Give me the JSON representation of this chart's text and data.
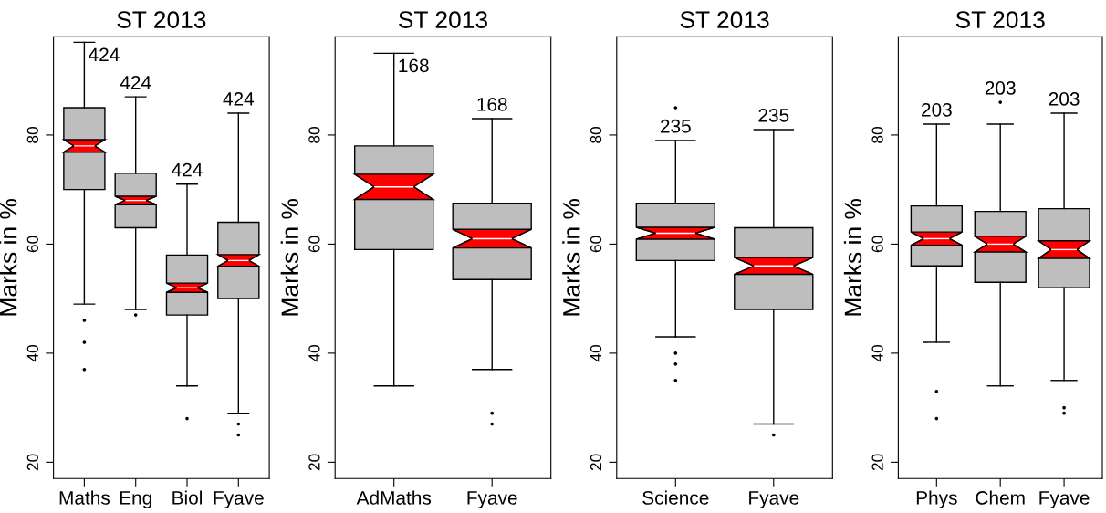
{
  "chart_data": [
    {
      "type": "box",
      "title": "ST 2013",
      "ylabel": "Marks in %",
      "categories": [
        "Maths",
        "Eng",
        "Biol",
        "Fyave"
      ],
      "ylim": [
        17,
        98
      ],
      "yticks": [
        20,
        40,
        60,
        80
      ],
      "grid": false,
      "series": [
        {
          "color": "#bebebe",
          "boxes": [
            {
              "low": 49,
              "q1": 70,
              "median": 78,
              "q3": 85,
              "high": 97,
              "outliers": [
                46,
                42,
                37
              ]
            },
            {
              "low": 48,
              "q1": 63,
              "median": 68,
              "q3": 73,
              "high": 87,
              "outliers": [
                47
              ]
            },
            {
              "low": 34,
              "q1": 47,
              "median": 52,
              "q3": 58,
              "high": 71,
              "outliers": [
                28
              ]
            },
            {
              "low": 29,
              "q1": 50,
              "median": 57,
              "q3": 64,
              "high": 84,
              "outliers": [
                27,
                25
              ]
            }
          ]
        }
      ],
      "annotations": [
        "424",
        "424",
        "424",
        "424"
      ]
    },
    {
      "type": "box",
      "title": "ST 2013",
      "ylabel": "Marks in %",
      "categories": [
        "AdMaths",
        "Fyave"
      ],
      "ylim": [
        17,
        98
      ],
      "yticks": [
        20,
        40,
        60,
        80
      ],
      "grid": false,
      "series": [
        {
          "color": "#bebebe",
          "boxes": [
            {
              "low": 34,
              "q1": 59,
              "median": 70.5,
              "q3": 78,
              "high": 95
            },
            {
              "low": 37,
              "q1": 53.5,
              "median": 61,
              "q3": 67.5,
              "high": 83,
              "outliers": [
                29,
                27
              ]
            }
          ]
        }
      ],
      "annotations": [
        "168",
        "168"
      ]
    },
    {
      "type": "box",
      "title": "ST 2013",
      "ylabel": "Marks in %",
      "categories": [
        "Science",
        "Fyave"
      ],
      "ylim": [
        17,
        98
      ],
      "yticks": [
        20,
        40,
        60,
        80
      ],
      "grid": false,
      "series": [
        {
          "color": "#bebebe",
          "boxes": [
            {
              "low": 43,
              "q1": 57,
              "median": 62,
              "q3": 67.5,
              "high": 79,
              "outliers": [
                85,
                40,
                38,
                35
              ]
            },
            {
              "low": 27,
              "q1": 48,
              "median": 56,
              "q3": 63,
              "high": 81,
              "outliers": [
                25
              ]
            }
          ]
        }
      ],
      "annotations": [
        "235",
        "235"
      ]
    },
    {
      "type": "box",
      "title": "ST 2013",
      "ylabel": "Marks in %",
      "categories": [
        "Phys",
        "Chem",
        "Fyave"
      ],
      "ylim": [
        17,
        98
      ],
      "yticks": [
        20,
        40,
        60,
        80
      ],
      "grid": false,
      "series": [
        {
          "color": "#bebebe",
          "boxes": [
            {
              "low": 42,
              "q1": 56,
              "median": 61,
              "q3": 67,
              "high": 82,
              "outliers": [
                33,
                28
              ]
            },
            {
              "low": 34,
              "q1": 53,
              "median": 60,
              "q3": 66,
              "high": 82,
              "outliers": [
                86
              ]
            },
            {
              "low": 35,
              "q1": 52,
              "median": 59,
              "q3": 66.5,
              "high": 84,
              "outliers": [
                30,
                29
              ]
            }
          ]
        }
      ],
      "annotations": [
        "203",
        "203",
        "203"
      ]
    }
  ]
}
